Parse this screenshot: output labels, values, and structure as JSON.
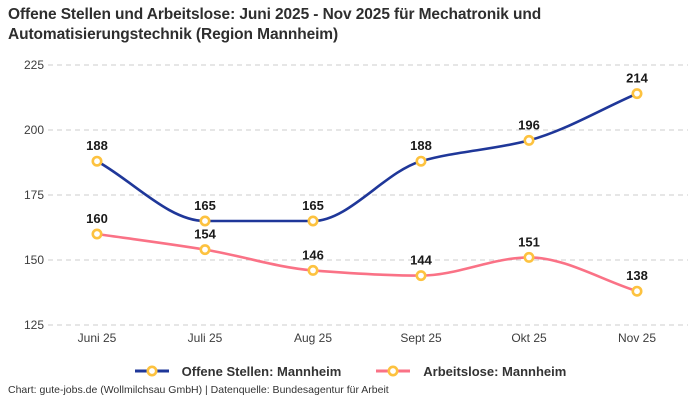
{
  "chart_data": {
    "type": "line",
    "title": "Offene Stellen und Arbeitslose: Juni 2025 - Nov 2025 für Mechatronik und Automatisierungstechnik (Region Mannheim)",
    "categories": [
      "Juni 25",
      "Juli 25",
      "Aug 25",
      "Sept 25",
      "Okt 25",
      "Nov 25"
    ],
    "series": [
      {
        "name": "Offene Stellen: Mannheim",
        "values": [
          188,
          165,
          165,
          188,
          196,
          214
        ],
        "color": "#1f3799"
      },
      {
        "name": "Arbeitslose: Mannheim",
        "values": [
          160,
          154,
          146,
          144,
          151,
          138
        ],
        "color": "#fa7286"
      }
    ],
    "marker": {
      "shape": "circle",
      "stroke_color": "#fdc23f",
      "fill_color": "#ffffff"
    },
    "ylim": [
      125,
      225
    ],
    "yticks": [
      125,
      150,
      175,
      200,
      225
    ],
    "xlabel": "",
    "ylabel": "",
    "grid": "dashed-horizontal",
    "legend_position": "bottom",
    "data_labels": true
  },
  "footer": {
    "credit": "Chart: gute-jobs.de (Wollmilchsau GmbH) | Datenquelle: Bundesagentur für Arbeit"
  },
  "colors": {
    "background": "#ffffff",
    "grid": "#cccccc",
    "tick_label": "#3d3d3d",
    "data_label": "#1a1a1a",
    "title": "#2e2e2e",
    "legend_label": "#333333"
  }
}
